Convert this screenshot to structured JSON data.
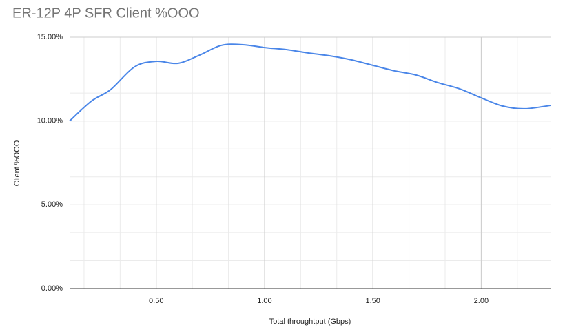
{
  "chart_data": {
    "type": "line",
    "title": "ER-12P 4P SFR Client %OOO",
    "x_label": "Total throughtput (Gbps)",
    "y_label": "Client %OOO",
    "x": [
      0.1,
      0.2,
      0.29,
      0.4,
      0.5,
      0.6,
      0.7,
      0.8,
      0.9,
      1.0,
      1.1,
      1.2,
      1.3,
      1.4,
      1.5,
      1.6,
      1.7,
      1.8,
      1.9,
      2.0,
      2.1,
      2.2,
      2.32
    ],
    "series": [
      {
        "name": "Client %OOO",
        "color": "#4a86e8",
        "values": [
          10.0,
          11.18,
          11.88,
          13.23,
          13.56,
          13.44,
          13.93,
          14.51,
          14.55,
          14.38,
          14.26,
          14.06,
          13.89,
          13.65,
          13.32,
          12.99,
          12.74,
          12.29,
          11.92,
          11.38,
          10.89,
          10.73,
          10.93
        ]
      }
    ],
    "xlim": [
      0.1,
      2.32
    ],
    "xticks": [
      {
        "value": 0.5,
        "label": "0.50"
      },
      {
        "value": 1.0,
        "label": "1.00"
      },
      {
        "value": 1.5,
        "label": "1.50"
      },
      {
        "value": 2.0,
        "label": "2.00"
      }
    ],
    "ylim": [
      0,
      15
    ],
    "yticks": [
      {
        "value": 0,
        "label": "0.00%"
      },
      {
        "value": 5,
        "label": "5.00%"
      },
      {
        "value": 10,
        "label": "10.00%"
      },
      {
        "value": 15,
        "label": "15.00%"
      }
    ],
    "grid": true
  }
}
